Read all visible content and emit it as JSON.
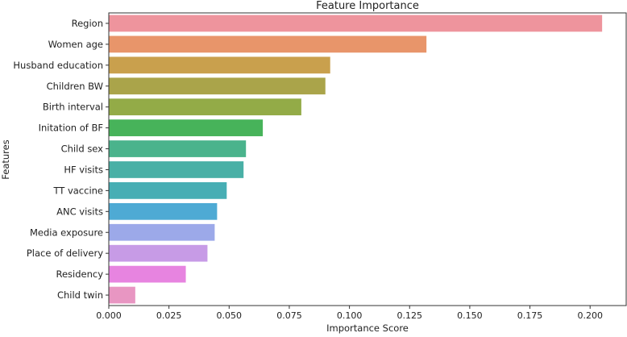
{
  "chart_data": {
    "type": "bar",
    "orientation": "horizontal",
    "title": "Feature Importance",
    "xlabel": "Importance Score",
    "ylabel": "Features",
    "xlim": [
      0,
      0.215
    ],
    "xticks": [
      "0.000",
      "0.025",
      "0.050",
      "0.075",
      "0.100",
      "0.125",
      "0.150",
      "0.175",
      "0.200"
    ],
    "grid": false,
    "legend": "none",
    "categories": [
      "Region",
      "Women age",
      "Husband education",
      "Children BW",
      "Birth interval",
      "Initation of BF",
      "Child sex",
      "HF visits",
      "TT vaccine",
      "ANC visits",
      "Media exposure",
      "Place of delivery",
      "Residency",
      "Child twin"
    ],
    "values": [
      0.205,
      0.132,
      0.092,
      0.09,
      0.08,
      0.064,
      0.057,
      0.056,
      0.049,
      0.045,
      0.044,
      0.041,
      0.032,
      0.011
    ],
    "colors": [
      "#ee949d",
      "#e8956a",
      "#c9a04d",
      "#aaa44a",
      "#93ab47",
      "#47b35a",
      "#4ab38c",
      "#49b0a6",
      "#47aeb4",
      "#4eaad4",
      "#9ca9e9",
      "#c79be6",
      "#e784e0",
      "#e896c2"
    ]
  }
}
